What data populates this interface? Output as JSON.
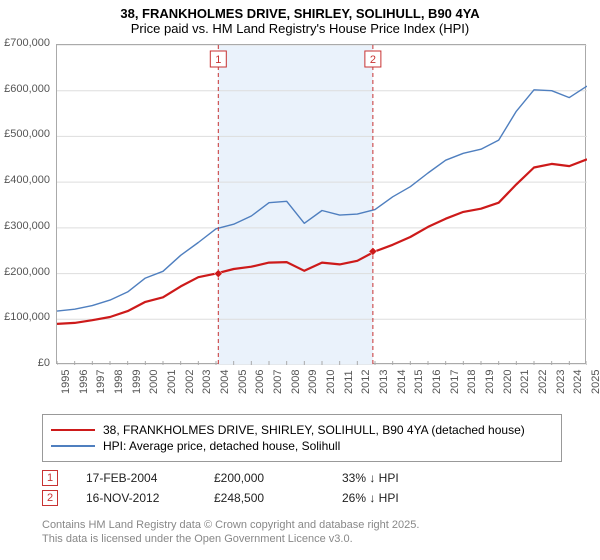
{
  "title_line1": "38, FRANKHOLMES DRIVE, SHIRLEY, SOLIHULL, B90 4YA",
  "title_line2": "Price paid vs. HM Land Registry's House Price Index (HPI)",
  "chart": {
    "type": "line",
    "background_color": "#ffffff",
    "border_color": "#aaaaaa",
    "y": {
      "min": 0,
      "max": 700000,
      "ticks": [
        0,
        100000,
        200000,
        300000,
        400000,
        500000,
        600000,
        700000
      ],
      "labels": [
        "£0",
        "£100,000",
        "£200,000",
        "£300,000",
        "£400,000",
        "£500,000",
        "£600,000",
        "£700,000"
      ],
      "label_fontsize": 11,
      "label_color": "#555555",
      "grid_color": "#dddddd"
    },
    "x": {
      "years": [
        1995,
        1996,
        1997,
        1998,
        1999,
        2000,
        2001,
        2002,
        2003,
        2004,
        2005,
        2006,
        2007,
        2008,
        2009,
        2010,
        2011,
        2012,
        2013,
        2014,
        2015,
        2016,
        2017,
        2018,
        2019,
        2020,
        2021,
        2022,
        2023,
        2024,
        2025
      ],
      "label_fontsize": 11,
      "label_color": "#555555",
      "tick_color": "#aaaaaa"
    },
    "highlight_band": {
      "start_year": 2004.13,
      "end_year": 2012.88,
      "fill": "#eaf2fb"
    },
    "marker_lines": [
      {
        "year": 2004.13,
        "color": "#c83232",
        "dash": "4,3",
        "label": "1"
      },
      {
        "year": 2012.88,
        "color": "#c83232",
        "dash": "4,3",
        "label": "2"
      }
    ],
    "marker_label_box": {
      "border_color": "#c83232",
      "text_color": "#c83232",
      "fontsize": 11,
      "bg": "#ffffff"
    },
    "series": [
      {
        "name": "price_paid",
        "color": "#cd1a1a",
        "width": 2.2,
        "legend": "38, FRANKHOLMES DRIVE, SHIRLEY, SOLIHULL, B90 4YA (detached house)",
        "points": [
          [
            1995,
            90000
          ],
          [
            1996,
            92000
          ],
          [
            1997,
            98000
          ],
          [
            1998,
            105000
          ],
          [
            1999,
            118000
          ],
          [
            2000,
            138000
          ],
          [
            2001,
            148000
          ],
          [
            2002,
            172000
          ],
          [
            2003,
            192000
          ],
          [
            2004,
            200000
          ],
          [
            2005,
            210000
          ],
          [
            2006,
            215000
          ],
          [
            2007,
            224000
          ],
          [
            2008,
            225000
          ],
          [
            2009,
            206000
          ],
          [
            2010,
            224000
          ],
          [
            2011,
            220000
          ],
          [
            2012,
            228000
          ],
          [
            2013,
            248500
          ],
          [
            2014,
            263000
          ],
          [
            2015,
            280000
          ],
          [
            2016,
            302000
          ],
          [
            2017,
            320000
          ],
          [
            2018,
            335000
          ],
          [
            2019,
            342000
          ],
          [
            2020,
            355000
          ],
          [
            2021,
            395000
          ],
          [
            2022,
            432000
          ],
          [
            2023,
            440000
          ],
          [
            2024,
            435000
          ],
          [
            2025,
            450000
          ]
        ],
        "data_markers": [
          {
            "x": 2004.13,
            "y": 200000,
            "fill": "#cd1a1a"
          },
          {
            "x": 2012.88,
            "y": 248500,
            "fill": "#cd1a1a"
          }
        ]
      },
      {
        "name": "hpi",
        "color": "#4f7fbf",
        "width": 1.4,
        "legend": "HPI: Average price, detached house, Solihull",
        "points": [
          [
            1995,
            118000
          ],
          [
            1996,
            122000
          ],
          [
            1997,
            130000
          ],
          [
            1998,
            142000
          ],
          [
            1999,
            160000
          ],
          [
            2000,
            190000
          ],
          [
            2001,
            205000
          ],
          [
            2002,
            240000
          ],
          [
            2003,
            268000
          ],
          [
            2004,
            298000
          ],
          [
            2005,
            308000
          ],
          [
            2006,
            326000
          ],
          [
            2007,
            355000
          ],
          [
            2008,
            358000
          ],
          [
            2009,
            310000
          ],
          [
            2010,
            338000
          ],
          [
            2011,
            328000
          ],
          [
            2012,
            330000
          ],
          [
            2013,
            340000
          ],
          [
            2014,
            368000
          ],
          [
            2015,
            390000
          ],
          [
            2016,
            420000
          ],
          [
            2017,
            448000
          ],
          [
            2018,
            463000
          ],
          [
            2019,
            472000
          ],
          [
            2020,
            492000
          ],
          [
            2021,
            555000
          ],
          [
            2022,
            602000
          ],
          [
            2023,
            600000
          ],
          [
            2024,
            585000
          ],
          [
            2025,
            610000
          ]
        ]
      }
    ]
  },
  "legend": {
    "border_color": "#999999",
    "fontsize": 12
  },
  "sale_markers": [
    {
      "badge": "1",
      "date": "17-FEB-2004",
      "price": "£200,000",
      "delta": "33% ↓ HPI"
    },
    {
      "badge": "2",
      "date": "16-NOV-2012",
      "price": "£248,500",
      "delta": "26% ↓ HPI"
    }
  ],
  "copyright": {
    "line1": "Contains HM Land Registry data © Crown copyright and database right 2025.",
    "line2": "This data is licensed under the Open Government Licence v3.0.",
    "color": "#888888",
    "fontsize": 11
  }
}
